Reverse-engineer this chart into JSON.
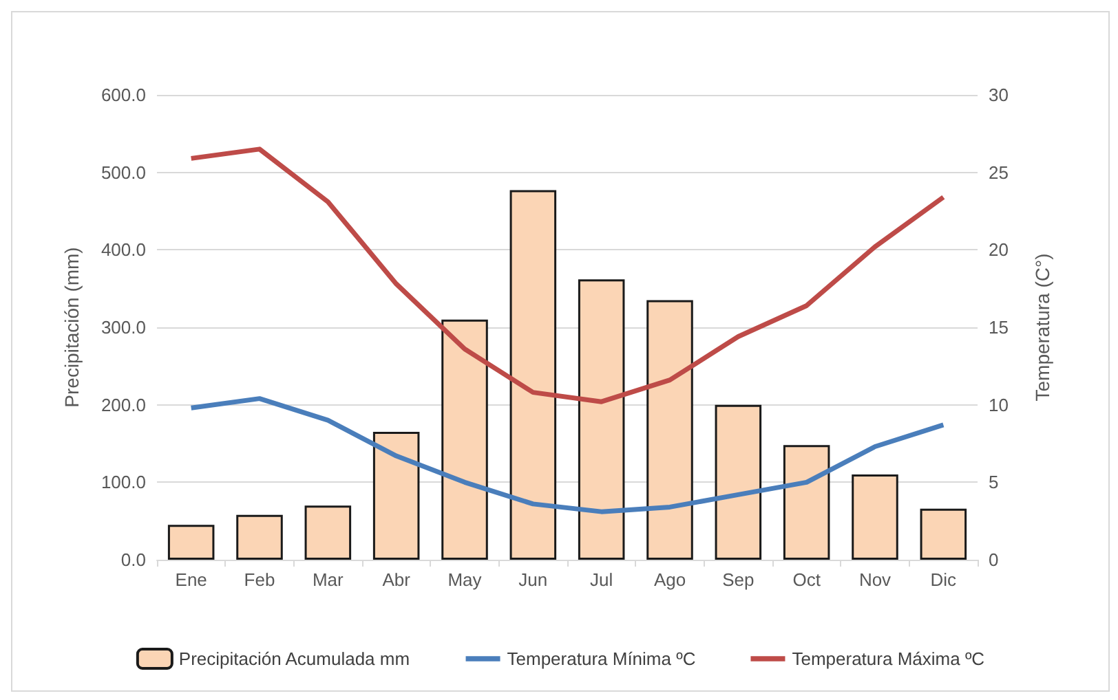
{
  "chart_data": {
    "type": "bar",
    "ylabel": "Precipitación (mm)",
    "y2label": "Temperatura (C°)",
    "categories": [
      "Ene",
      "Feb",
      "Mar",
      "Abr",
      "May",
      "Jun",
      "Jul",
      "Ago",
      "Sep",
      "Oct",
      "Nov",
      "Dic"
    ],
    "series": [
      {
        "name": "Precipitación Acumulada mm",
        "color": "#fbd5b5",
        "values": [
          45,
          58,
          70,
          165,
          310,
          477,
          362,
          335,
          200,
          148,
          110,
          66
        ]
      },
      {
        "name": "Temperatura Mínima ºC",
        "type": "line",
        "axis": "y2",
        "color": "#4a7ebb",
        "values": [
          9.8,
          10.4,
          9.0,
          6.7,
          5.0,
          3.6,
          3.1,
          3.4,
          4.2,
          5.0,
          7.3,
          8.7
        ]
      },
      {
        "name": "Temperatura Máxima ºC",
        "type": "line",
        "axis": "y2",
        "color": "#be4b48",
        "values": [
          25.9,
          26.5,
          23.1,
          17.8,
          13.6,
          10.8,
          10.2,
          11.6,
          14.4,
          16.4,
          20.2,
          23.4
        ]
      }
    ],
    "ylim": [
      0,
      600
    ],
    "yticks": [
      {
        "value": 0,
        "label": "0.0"
      },
      {
        "value": 100,
        "label": "100.0"
      },
      {
        "value": 200,
        "label": "200.0"
      },
      {
        "value": 300,
        "label": "300.0"
      },
      {
        "value": 400,
        "label": "400.0"
      },
      {
        "value": 500,
        "label": "500.0"
      },
      {
        "value": 600,
        "label": "600.0"
      }
    ],
    "y2lim": [
      0,
      30
    ],
    "y2ticks": [
      0,
      5,
      10,
      15,
      20,
      25,
      30
    ],
    "grid": "y",
    "legend": "bottom",
    "marker": "none"
  }
}
